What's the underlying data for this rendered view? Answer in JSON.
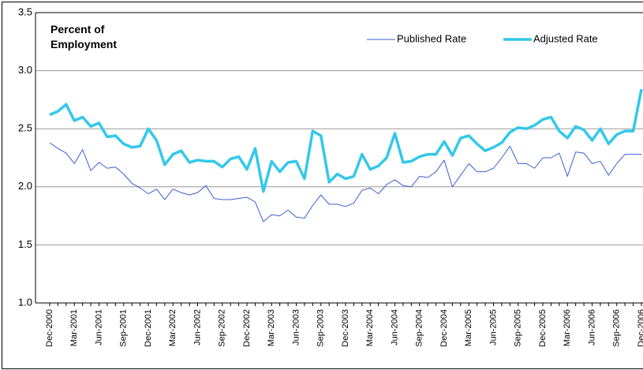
{
  "chart_data": {
    "type": "line",
    "y_axis_label": "Percent of Employment",
    "categories": [
      "Dec-2000",
      null,
      null,
      "Mar-2001",
      null,
      null,
      "Jun-2001",
      null,
      null,
      "Sep-2001",
      null,
      null,
      "Dec-2001",
      null,
      null,
      "Mar-2002",
      null,
      null,
      "Jun-2002",
      null,
      null,
      "Sep-2002",
      null,
      null,
      "Dec-2002",
      null,
      null,
      "Mar-2003",
      null,
      null,
      "Jun-2003",
      null,
      null,
      "Sep-2003",
      null,
      null,
      "Dec-2003",
      null,
      null,
      "Mar-2004",
      null,
      null,
      "Jun-2004",
      null,
      null,
      "Sep-2004",
      null,
      null,
      "Dec-2004",
      null,
      null,
      "Mar-2005",
      null,
      null,
      "Jun-2005",
      null,
      null,
      "Sep-2005",
      null,
      null,
      "Dec-2005",
      null,
      null,
      "Mar-2006",
      null,
      null,
      "Jun-2006",
      null,
      null,
      "Sep-2006",
      null,
      null,
      "Dec-2006"
    ],
    "series": [
      {
        "name": "Published Rate",
        "color": "#3a5fd0",
        "width": 1,
        "values": [
          2.38,
          2.33,
          2.29,
          2.2,
          2.32,
          2.14,
          2.21,
          2.16,
          2.17,
          2.11,
          2.03,
          1.99,
          1.94,
          1.98,
          1.89,
          1.98,
          1.95,
          1.93,
          1.95,
          2.01,
          1.9,
          1.89,
          1.89,
          1.9,
          1.91,
          1.87,
          1.7,
          1.76,
          1.75,
          1.8,
          1.74,
          1.73,
          1.84,
          1.93,
          1.85,
          1.85,
          1.83,
          1.86,
          1.97,
          1.99,
          1.94,
          2.02,
          2.06,
          2.01,
          2.0,
          2.09,
          2.08,
          2.13,
          2.23,
          2.0,
          2.1,
          2.2,
          2.13,
          2.13,
          2.16,
          2.25,
          2.35,
          2.2,
          2.2,
          2.16,
          2.25,
          2.25,
          2.29,
          2.09,
          2.3,
          2.29,
          2.2,
          2.22,
          2.1,
          2.2,
          2.28,
          2.28,
          2.28
        ]
      },
      {
        "name": "Adjusted Rate",
        "color": "#33c8ea",
        "width": 3.5,
        "values": [
          2.62,
          2.65,
          2.71,
          2.57,
          2.6,
          2.52,
          2.55,
          2.43,
          2.44,
          2.37,
          2.34,
          2.35,
          2.5,
          2.4,
          2.19,
          2.28,
          2.31,
          2.21,
          2.23,
          2.22,
          2.22,
          2.17,
          2.24,
          2.26,
          2.15,
          2.33,
          1.96,
          2.22,
          2.13,
          2.21,
          2.22,
          2.07,
          2.48,
          2.44,
          2.04,
          2.11,
          2.07,
          2.09,
          2.28,
          2.15,
          2.18,
          2.25,
          2.46,
          2.21,
          2.22,
          2.26,
          2.28,
          2.28,
          2.39,
          2.27,
          2.42,
          2.44,
          2.37,
          2.31,
          2.34,
          2.38,
          2.47,
          2.51,
          2.5,
          2.53,
          2.58,
          2.6,
          2.48,
          2.42,
          2.52,
          2.49,
          2.4,
          2.5,
          2.37,
          2.45,
          2.48,
          2.48,
          2.84
        ]
      }
    ],
    "ylim": [
      1.0,
      3.5
    ],
    "yticks": [
      {
        "value": 1.0,
        "label": "1.0"
      },
      1.5,
      {
        "value": 2.0,
        "label": "2.0"
      },
      2.5,
      {
        "value": 3.0,
        "label": "3.0"
      },
      3.5
    ],
    "grid": true,
    "legend": "top-right"
  }
}
